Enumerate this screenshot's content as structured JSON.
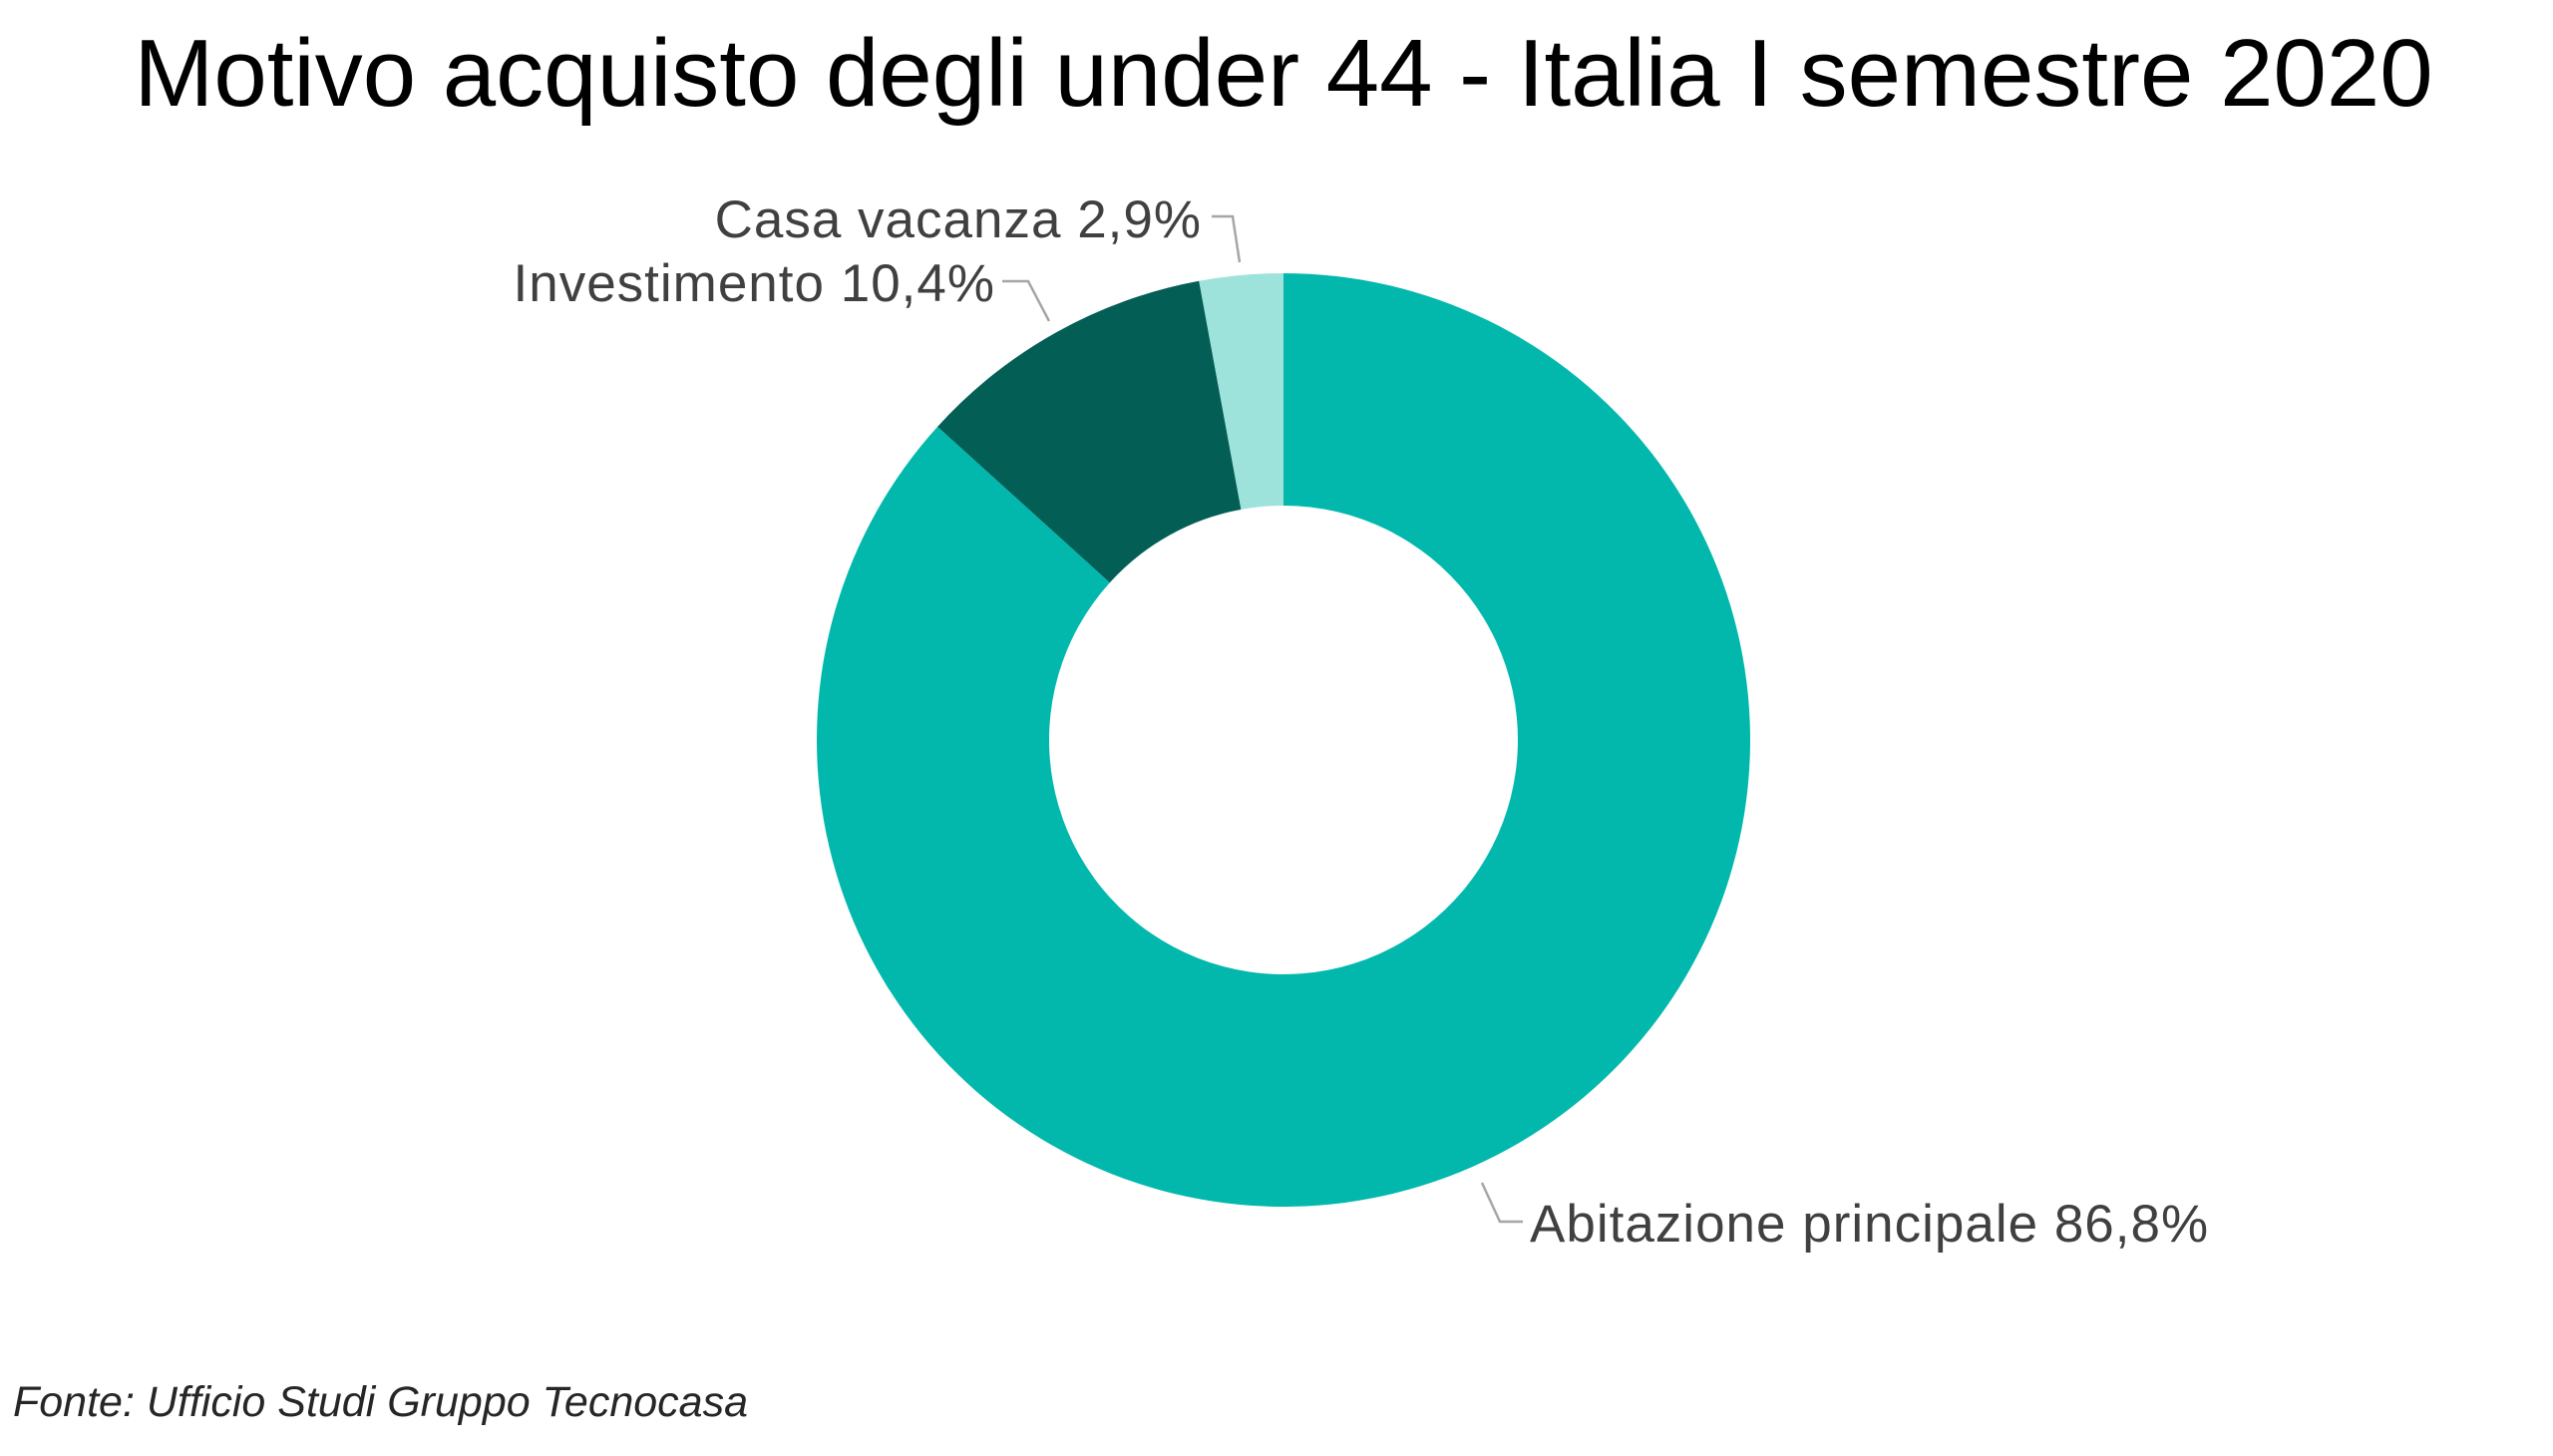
{
  "source": "Fonte: Ufficio Studi Gruppo Tecnocasa",
  "chart_data": {
    "type": "pie",
    "donut": true,
    "direction": "clockwise",
    "title": "Motivo acquisto degli under 44 - Italia I semestre 2020",
    "categories": [
      "Abitazione principale",
      "Investimento",
      "Casa vacanza"
    ],
    "values": [
      86.8,
      10.4,
      2.9
    ],
    "value_labels": [
      "86,8%",
      "10,4%",
      "2,9%"
    ],
    "colors": [
      "#02B8AD",
      "#035E56",
      "#9DE3DC"
    ],
    "legend": "none"
  }
}
